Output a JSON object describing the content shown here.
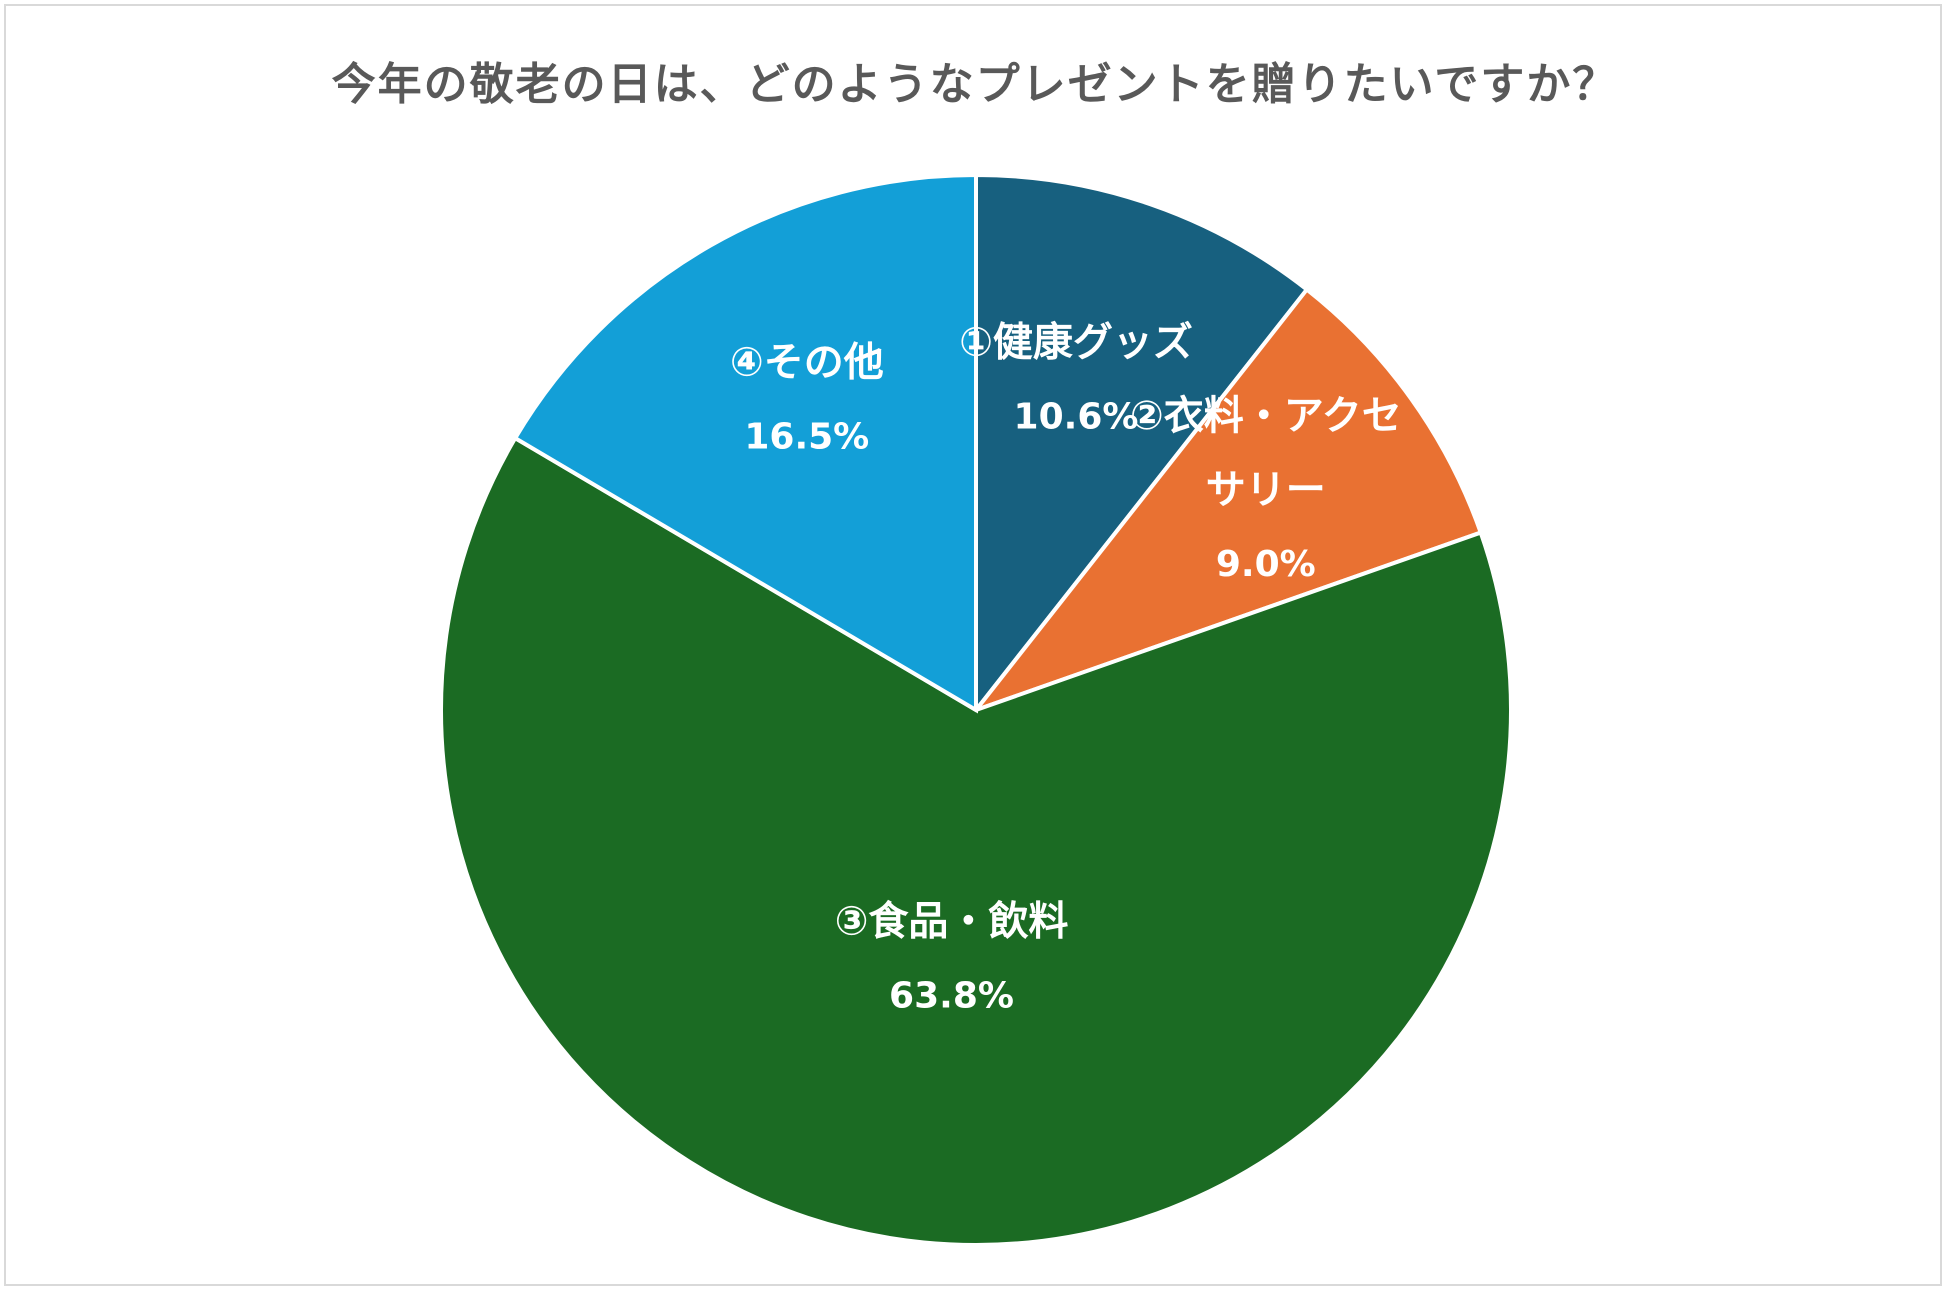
{
  "chart_data": {
    "type": "pie",
    "title": "今年の敬老の日は、どのようなプレゼントを贈りたいですか？",
    "unit": "%",
    "slices": [
      {
        "label_lines": [
          "①健康グッズ"
        ],
        "value": 10.6,
        "display": "10.6%",
        "color": "#17607f"
      },
      {
        "label_lines": [
          "②衣料・アクセ",
          "サリー"
        ],
        "value": 9.0,
        "display": "9.0%",
        "color": "#e97132"
      },
      {
        "label_lines": [
          "③食品・飲料"
        ],
        "value": 63.8,
        "display": "63.8%",
        "color": "#1b6b23"
      },
      {
        "label_lines": [
          "④その他"
        ],
        "value": 16.5,
        "display": "16.5%",
        "color": "#139fd7"
      }
    ],
    "start_angle": "12 o'clock",
    "direction": "clockwise",
    "legend": "none"
  }
}
